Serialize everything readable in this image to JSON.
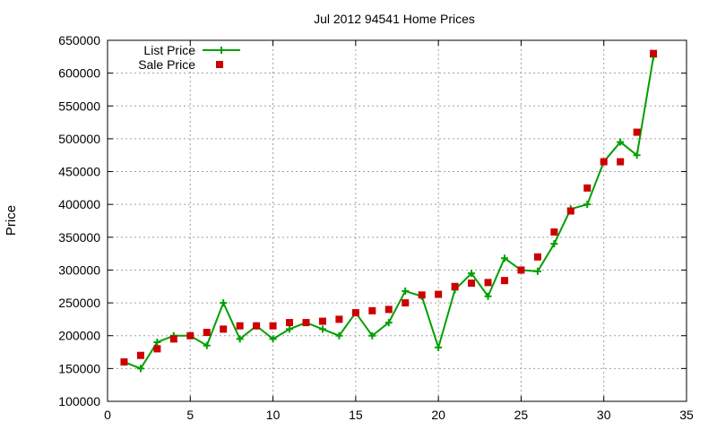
{
  "chart_data": {
    "type": "line",
    "title": "Jul 2012 94541 Home Prices",
    "xlabel": "",
    "ylabel": "Price",
    "xlim": [
      0,
      35
    ],
    "ylim": [
      100000,
      650000
    ],
    "xticks": [
      0,
      5,
      10,
      15,
      20,
      25,
      30,
      35
    ],
    "yticks": [
      100000,
      150000,
      200000,
      250000,
      300000,
      350000,
      400000,
      450000,
      500000,
      550000,
      600000,
      650000
    ],
    "grid": true,
    "legend_position": "top-left",
    "series": [
      {
        "name": "List Price",
        "style": "line-plus",
        "color": "#00a000",
        "x": [
          1,
          2,
          3,
          4,
          5,
          6,
          7,
          8,
          9,
          10,
          11,
          12,
          13,
          14,
          15,
          16,
          17,
          18,
          19,
          20,
          21,
          22,
          23,
          24,
          25,
          26,
          27,
          28,
          29,
          30,
          31,
          32,
          33
        ],
        "values": [
          160000,
          150000,
          190000,
          200000,
          200000,
          185000,
          250000,
          195000,
          215000,
          195000,
          210000,
          220000,
          210000,
          200000,
          235000,
          200000,
          220000,
          268000,
          260000,
          182000,
          270000,
          295000,
          260000,
          318000,
          300000,
          298000,
          340000,
          393000,
          400000,
          465000,
          495000,
          475000,
          625000
        ]
      },
      {
        "name": "Sale Price",
        "style": "square-marker",
        "color": "#cc0000",
        "x": [
          1,
          2,
          3,
          4,
          5,
          6,
          7,
          8,
          9,
          10,
          11,
          12,
          13,
          14,
          15,
          16,
          17,
          18,
          19,
          20,
          21,
          22,
          23,
          24,
          25,
          26,
          27,
          28,
          29,
          30,
          31,
          32,
          33
        ],
        "values": [
          160000,
          170000,
          180000,
          195000,
          200000,
          205000,
          210000,
          215000,
          215000,
          215000,
          220000,
          220000,
          222000,
          225000,
          235000,
          238000,
          240000,
          250000,
          262000,
          263000,
          275000,
          280000,
          281000,
          284000,
          300000,
          320000,
          358000,
          390000,
          425000,
          465000,
          465000,
          510000,
          630000
        ]
      }
    ]
  }
}
